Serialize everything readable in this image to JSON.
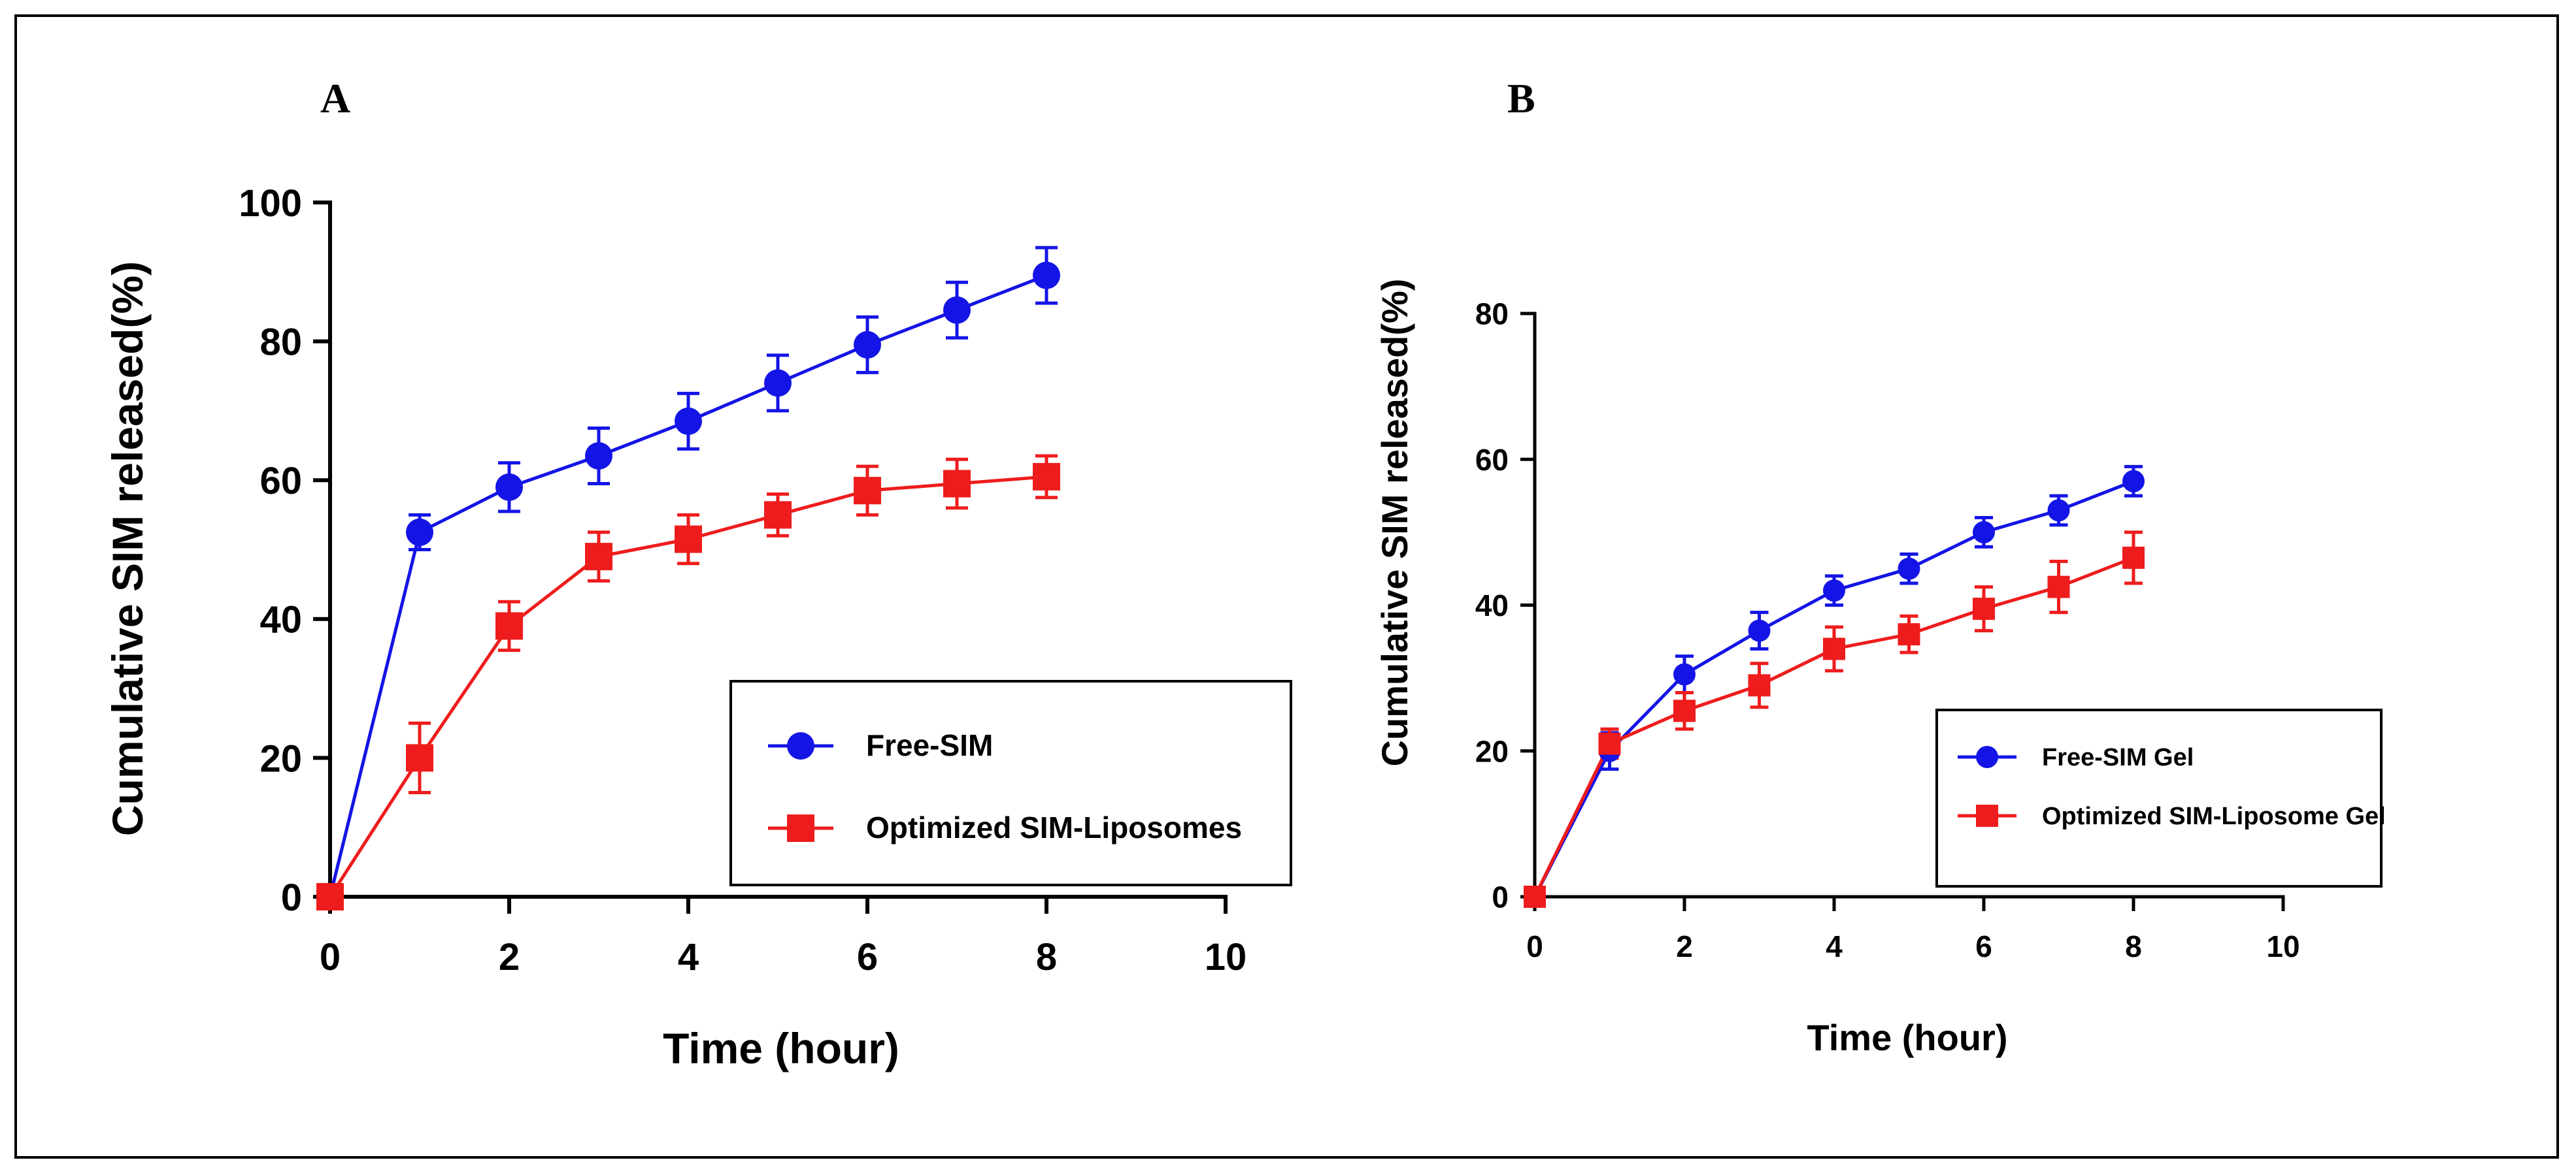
{
  "colors": {
    "free": "#1414e6",
    "liposome": "#ee1c1c",
    "axis": "#000000"
  },
  "chart_data": [
    {
      "panel": "A",
      "type": "line",
      "xlabel": "Time (hour)",
      "ylabel": "Cumulative SIM released(%)",
      "xlim": [
        0,
        10
      ],
      "ylim": [
        0,
        100
      ],
      "xticks": [
        0,
        2,
        4,
        6,
        8,
        10
      ],
      "yticks": [
        0,
        20,
        40,
        60,
        80,
        100
      ],
      "legend_position": "lower-right",
      "series": [
        {
          "name": "Free-SIM",
          "marker": "circle",
          "color": "#1414e6",
          "x": [
            0,
            1,
            2,
            3,
            4,
            5,
            6,
            7,
            8
          ],
          "y": [
            0,
            52.5,
            59,
            63.5,
            68.5,
            74,
            79.5,
            84.5,
            89.5
          ],
          "err": [
            0,
            2.5,
            3.5,
            4,
            4,
            4,
            4,
            4,
            4
          ]
        },
        {
          "name": "Optimized SIM-Liposomes",
          "marker": "square",
          "color": "#ee1c1c",
          "x": [
            0,
            1,
            2,
            3,
            4,
            5,
            6,
            7,
            8
          ],
          "y": [
            0,
            20,
            39,
            49,
            51.5,
            55,
            58.5,
            59.5,
            60.5
          ],
          "err": [
            0,
            5,
            3.5,
            3.5,
            3.5,
            3,
            3.5,
            3.5,
            3
          ]
        }
      ]
    },
    {
      "panel": "B",
      "type": "line",
      "xlabel": "Time (hour)",
      "ylabel": "Cumulative SIM released(%)",
      "xlim": [
        0,
        10
      ],
      "ylim": [
        0,
        80
      ],
      "xticks": [
        0,
        2,
        4,
        6,
        8,
        10
      ],
      "yticks": [
        0,
        20,
        40,
        60,
        80
      ],
      "legend_position": "lower-right",
      "series": [
        {
          "name": "Free-SIM Gel",
          "marker": "circle",
          "color": "#1414e6",
          "x": [
            0,
            1,
            2,
            3,
            4,
            5,
            6,
            7,
            8
          ],
          "y": [
            0,
            20,
            30.5,
            36.5,
            42,
            45,
            50,
            53,
            57
          ],
          "err": [
            0,
            2.5,
            2.5,
            2.5,
            2,
            2,
            2,
            2,
            2
          ]
        },
        {
          "name": "Optimized SIM-Liposome Gel",
          "marker": "square",
          "color": "#ee1c1c",
          "x": [
            0,
            1,
            2,
            3,
            4,
            5,
            6,
            7,
            8
          ],
          "y": [
            0,
            21,
            25.5,
            29,
            34,
            36,
            39.5,
            42.5,
            46.5
          ],
          "err": [
            0,
            2,
            2.5,
            3,
            3,
            2.5,
            3,
            3.5,
            3.5
          ]
        }
      ]
    }
  ]
}
